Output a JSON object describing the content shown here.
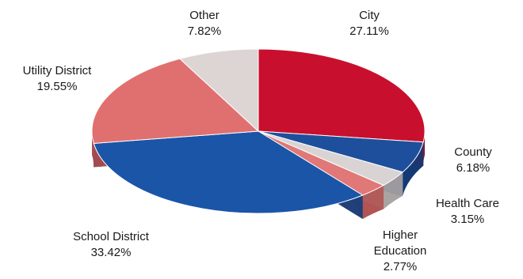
{
  "chart_data": {
    "type": "pie",
    "title": "",
    "slices": [
      {
        "name": "City",
        "value": 27.11,
        "label_lines": [
          "City",
          "27.11%"
        ],
        "color": "#c8102e",
        "side": "#8e0c22"
      },
      {
        "name": "County",
        "value": 6.18,
        "label_lines": [
          "County",
          "6.18%"
        ],
        "color": "#1e4f9c",
        "side": "#143a75"
      },
      {
        "name": "Health Care",
        "value": 3.15,
        "label_lines": [
          "Health Care",
          "3.15%"
        ],
        "color": "#d9d3d3",
        "side": "#aaa3a3"
      },
      {
        "name": "Higher Education",
        "value": 2.77,
        "label_lines": [
          "Higher",
          "Education",
          "2.77%"
        ],
        "color": "#e07878",
        "side": "#b25454"
      },
      {
        "name": "School District",
        "value": 33.42,
        "label_lines": [
          "School District",
          "33.42%"
        ],
        "color": "#1a55a8",
        "side": "#123c7c"
      },
      {
        "name": "Utility District",
        "value": 19.55,
        "label_lines": [
          "Utility District",
          "19.55%"
        ],
        "color": "#e07070",
        "side": "#b24d4d"
      },
      {
        "name": "Other",
        "value": 7.82,
        "label_lines": [
          "Other",
          "7.82%"
        ],
        "color": "#ddd5d3",
        "side": "#aea5a2"
      }
    ],
    "start_angle_deg": 90,
    "direction": "clockwise",
    "style": "3d"
  }
}
